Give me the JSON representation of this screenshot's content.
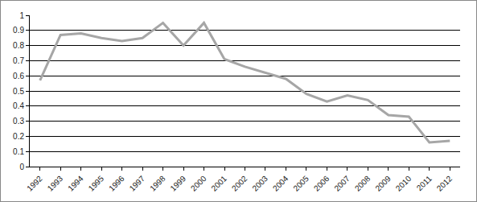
{
  "chart_data": {
    "type": "line",
    "categories": [
      "1992",
      "1993",
      "1994",
      "1995",
      "1996",
      "1997",
      "1998",
      "1999",
      "2000",
      "2001",
      "2002",
      "2003",
      "2004",
      "2005",
      "2006",
      "2007",
      "2008",
      "2009",
      "2010",
      "2011",
      "2012"
    ],
    "values": [
      0.57,
      0.87,
      0.88,
      0.85,
      0.83,
      0.85,
      0.95,
      0.8,
      0.95,
      0.71,
      0.66,
      0.62,
      0.58,
      0.48,
      0.43,
      0.47,
      0.44,
      0.34,
      0.33,
      0.16,
      0.17
    ],
    "color": "#a6a6a6",
    "ylim": [
      0,
      1
    ],
    "yticks": [
      0,
      0.1,
      0.2,
      0.3,
      0.4,
      0.5,
      0.6,
      0.7,
      0.8,
      0.9,
      1
    ],
    "grid": true
  }
}
